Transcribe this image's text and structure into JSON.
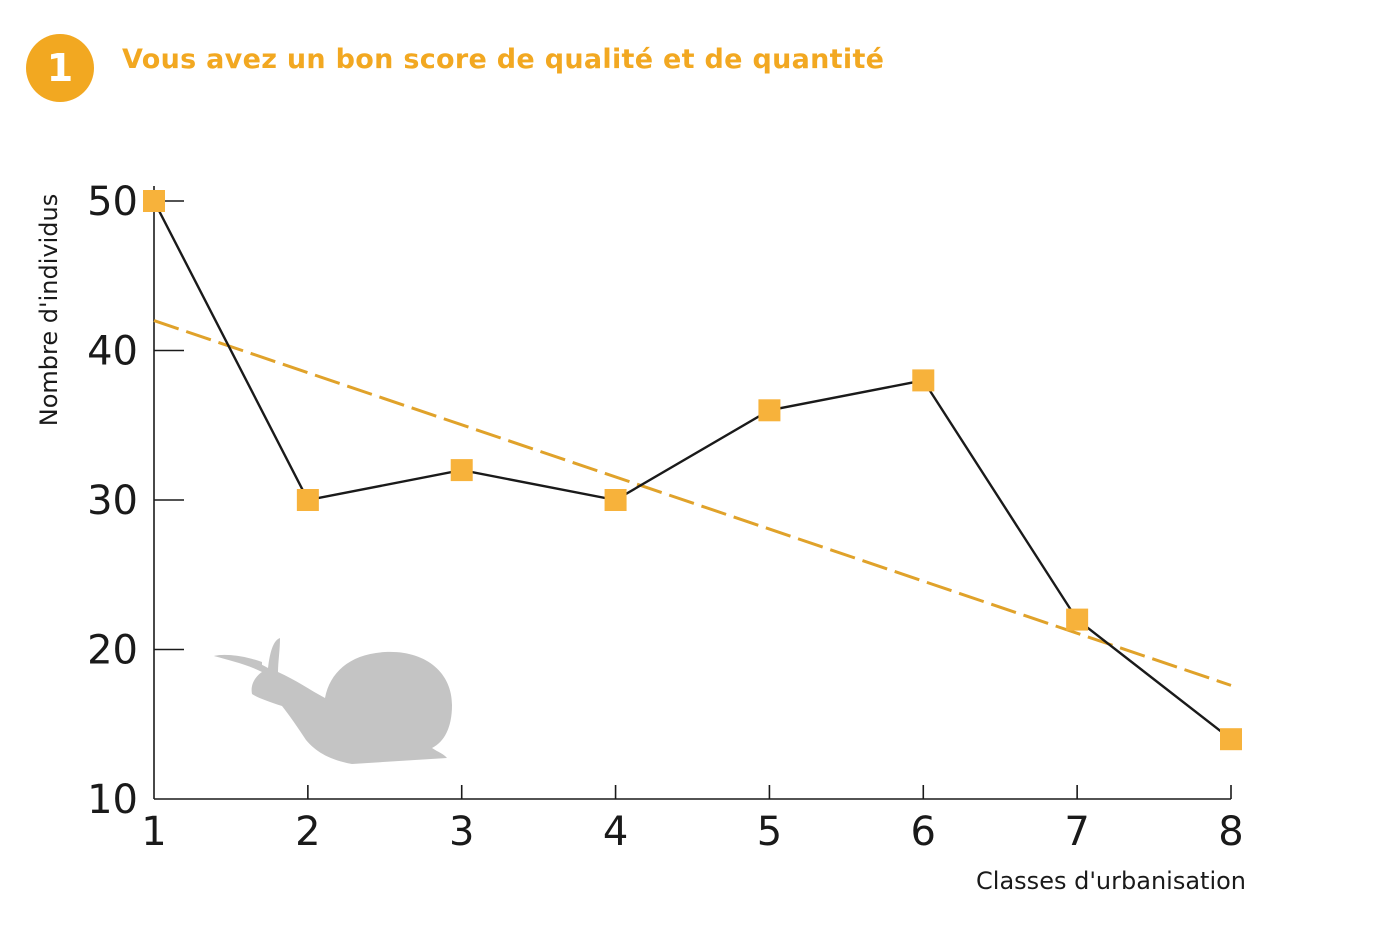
{
  "header": {
    "badge_number": "1",
    "badge_color": "#f2a821",
    "headline": "Vous avez un bon score de qualité et de quantité"
  },
  "illustration": {
    "icon": "snail-icon",
    "color": "#c4c4c4"
  },
  "chart_data": {
    "type": "line",
    "title": "",
    "xlabel": "Classes d'urbanisation",
    "ylabel": "Nombre d'individus",
    "x": [
      1,
      2,
      3,
      4,
      5,
      6,
      7,
      8
    ],
    "xticks": [
      1,
      2,
      3,
      4,
      5,
      6,
      7,
      8
    ],
    "yticks": [
      10,
      20,
      30,
      40,
      50
    ],
    "xlim": [
      1,
      8
    ],
    "ylim": [
      10,
      50
    ],
    "grid": false,
    "legend": "none",
    "series": [
      {
        "values": [
          50,
          30,
          32,
          30,
          36,
          38,
          22,
          14
        ],
        "line_color": "#1a1a1a",
        "marker": "square",
        "marker_color": "#f7b23b"
      }
    ],
    "trendline": {
      "x": [
        1,
        8
      ],
      "y": [
        42,
        17.6
      ],
      "style": "dashed",
      "color": "#e0a22a"
    }
  }
}
